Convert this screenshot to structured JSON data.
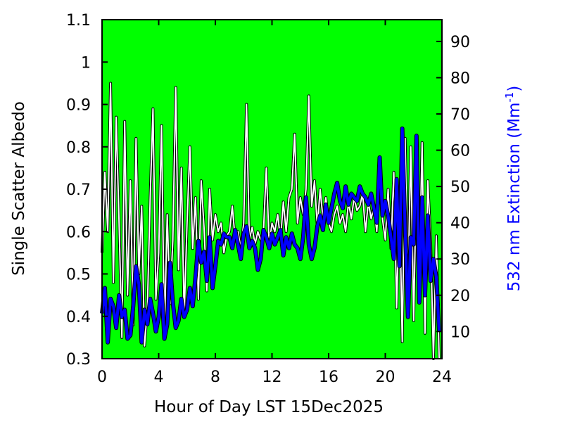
{
  "chart_data": {
    "type": "line",
    "xlabel": "Hour of Day LST 15Dec2025",
    "y1label": "Single Scatter Albedo",
    "y2label": {
      "prefix": "532 nm Extinction (Mm",
      "sup": "-1",
      "suffix": ")"
    },
    "xlim": [
      0,
      24
    ],
    "y1lim": [
      0.3,
      1.1
    ],
    "y2lim": [
      2.5,
      96
    ],
    "xticks": [
      "0",
      "4",
      "8",
      "12",
      "16",
      "20",
      "24"
    ],
    "y1ticks": [
      "0.3",
      "0.4",
      "0.5",
      "0.6",
      "0.7",
      "0.8",
      "0.9",
      "1",
      "1.1"
    ],
    "y2ticks": [
      "10",
      "20",
      "30",
      "40",
      "50",
      "60",
      "70",
      "80",
      "90"
    ],
    "plot_background": "#00ff00",
    "series": [
      {
        "axis": "y1",
        "color": "#ffffff",
        "outline": "#000000",
        "x": [
          0.0,
          0.2,
          0.4,
          0.6,
          0.8,
          1.0,
          1.2,
          1.4,
          1.6,
          1.8,
          2.0,
          2.2,
          2.4,
          2.6,
          2.8,
          3.0,
          3.2,
          3.4,
          3.6,
          3.8,
          4.0,
          4.2,
          4.4,
          4.6,
          4.8,
          5.0,
          5.2,
          5.4,
          5.6,
          5.8,
          6.0,
          6.2,
          6.4,
          6.6,
          6.8,
          7.0,
          7.2,
          7.4,
          7.6,
          7.8,
          8.0,
          8.2,
          8.4,
          8.6,
          8.8,
          9.0,
          9.2,
          9.4,
          9.6,
          9.8,
          10.0,
          10.2,
          10.4,
          10.6,
          10.8,
          11.0,
          11.2,
          11.4,
          11.6,
          11.8,
          12.0,
          12.2,
          12.4,
          12.6,
          12.8,
          13.0,
          13.2,
          13.4,
          13.6,
          13.8,
          14.0,
          14.2,
          14.4,
          14.6,
          14.8,
          15.0,
          15.2,
          15.4,
          15.6,
          15.8,
          16.0,
          16.2,
          16.4,
          16.6,
          16.8,
          17.0,
          17.2,
          17.4,
          17.6,
          17.8,
          18.0,
          18.2,
          18.4,
          18.6,
          18.8,
          19.0,
          19.2,
          19.4,
          19.6,
          19.8,
          20.0,
          20.2,
          20.4,
          20.6,
          20.8,
          21.0,
          21.2,
          21.4,
          21.6,
          21.8,
          22.0,
          22.2,
          22.4,
          22.6,
          22.8,
          23.0,
          23.2,
          23.4,
          23.6,
          23.8
        ],
        "values": [
          0.55,
          0.74,
          0.6,
          0.95,
          0.48,
          0.87,
          0.62,
          0.35,
          0.86,
          0.45,
          0.72,
          0.38,
          0.82,
          0.5,
          0.66,
          0.33,
          0.42,
          0.68,
          0.89,
          0.44,
          0.55,
          0.85,
          0.36,
          0.64,
          0.43,
          0.58,
          0.94,
          0.51,
          0.75,
          0.4,
          0.62,
          0.8,
          0.56,
          0.68,
          0.44,
          0.72,
          0.61,
          0.46,
          0.7,
          0.58,
          0.64,
          0.6,
          0.62,
          0.55,
          0.59,
          0.6,
          0.66,
          0.58,
          0.6,
          0.56,
          0.62,
          0.9,
          0.58,
          0.61,
          0.57,
          0.6,
          0.58,
          0.6,
          0.75,
          0.57,
          0.62,
          0.6,
          0.64,
          0.58,
          0.67,
          0.6,
          0.68,
          0.7,
          0.83,
          0.62,
          0.68,
          0.64,
          0.7,
          0.92,
          0.66,
          0.72,
          0.61,
          0.7,
          0.63,
          0.68,
          0.62,
          0.6,
          0.64,
          0.66,
          0.62,
          0.64,
          0.6,
          0.67,
          0.63,
          0.68,
          0.65,
          0.66,
          0.69,
          0.6,
          0.67,
          0.63,
          0.66,
          0.6,
          0.72,
          0.63,
          0.58,
          0.7,
          0.56,
          0.74,
          0.42,
          0.68,
          0.34,
          0.82,
          0.46,
          0.8,
          0.39,
          0.74,
          0.49,
          0.81,
          0.36,
          0.72,
          0.58,
          0.3,
          0.59,
          0.3
        ]
      },
      {
        "axis": "y2",
        "color": "#0000ff",
        "outline": "#000000",
        "x": [
          0.0,
          0.2,
          0.4,
          0.6,
          0.8,
          1.0,
          1.2,
          1.4,
          1.6,
          1.8,
          2.0,
          2.2,
          2.4,
          2.6,
          2.8,
          3.0,
          3.2,
          3.4,
          3.6,
          3.8,
          4.0,
          4.2,
          4.4,
          4.6,
          4.8,
          5.0,
          5.2,
          5.4,
          5.6,
          5.8,
          6.0,
          6.2,
          6.4,
          6.6,
          6.8,
          7.0,
          7.2,
          7.4,
          7.6,
          7.8,
          8.0,
          8.2,
          8.4,
          8.6,
          8.8,
          9.0,
          9.2,
          9.4,
          9.6,
          9.8,
          10.0,
          10.2,
          10.4,
          10.6,
          10.8,
          11.0,
          11.2,
          11.4,
          11.6,
          11.8,
          12.0,
          12.2,
          12.4,
          12.6,
          12.8,
          13.0,
          13.2,
          13.4,
          13.6,
          13.8,
          14.0,
          14.2,
          14.4,
          14.6,
          14.8,
          15.0,
          15.2,
          15.4,
          15.6,
          15.8,
          16.0,
          16.2,
          16.4,
          16.6,
          16.8,
          17.0,
          17.2,
          17.4,
          17.6,
          17.8,
          18.0,
          18.2,
          18.4,
          18.6,
          18.8,
          19.0,
          19.2,
          19.4,
          19.6,
          19.8,
          20.0,
          20.2,
          20.4,
          20.6,
          20.8,
          21.0,
          21.2,
          21.4,
          21.6,
          21.8,
          22.0,
          22.2,
          22.4,
          22.6,
          22.8,
          23.0,
          23.2,
          23.4,
          23.6,
          23.8
        ],
        "values": [
          15,
          22,
          7,
          19,
          17,
          11,
          20,
          14,
          16,
          8,
          9,
          17,
          28,
          23,
          7,
          16,
          12,
          19,
          15,
          10,
          14,
          23,
          8,
          12,
          29,
          18,
          11,
          13,
          19,
          14,
          16,
          22,
          17,
          25,
          35,
          29,
          32,
          24,
          36,
          22,
          28,
          35,
          34,
          37,
          36,
          36,
          33,
          38,
          34,
          30,
          37,
          39,
          33,
          35,
          33,
          27,
          30,
          38,
          36,
          33,
          37,
          34,
          36,
          38,
          31,
          36,
          33,
          37,
          34,
          33,
          30,
          36,
          47,
          34,
          30,
          33,
          39,
          42,
          38,
          45,
          40,
          44,
          48,
          51,
          46,
          44,
          50,
          45,
          48,
          47,
          46,
          50,
          48,
          47,
          45,
          48,
          44,
          40,
          58,
          42,
          46,
          42,
          36,
          30,
          52,
          28,
          66,
          38,
          14,
          36,
          34,
          64,
          18,
          47,
          20,
          42,
          24,
          30,
          25,
          10
        ]
      }
    ]
  }
}
